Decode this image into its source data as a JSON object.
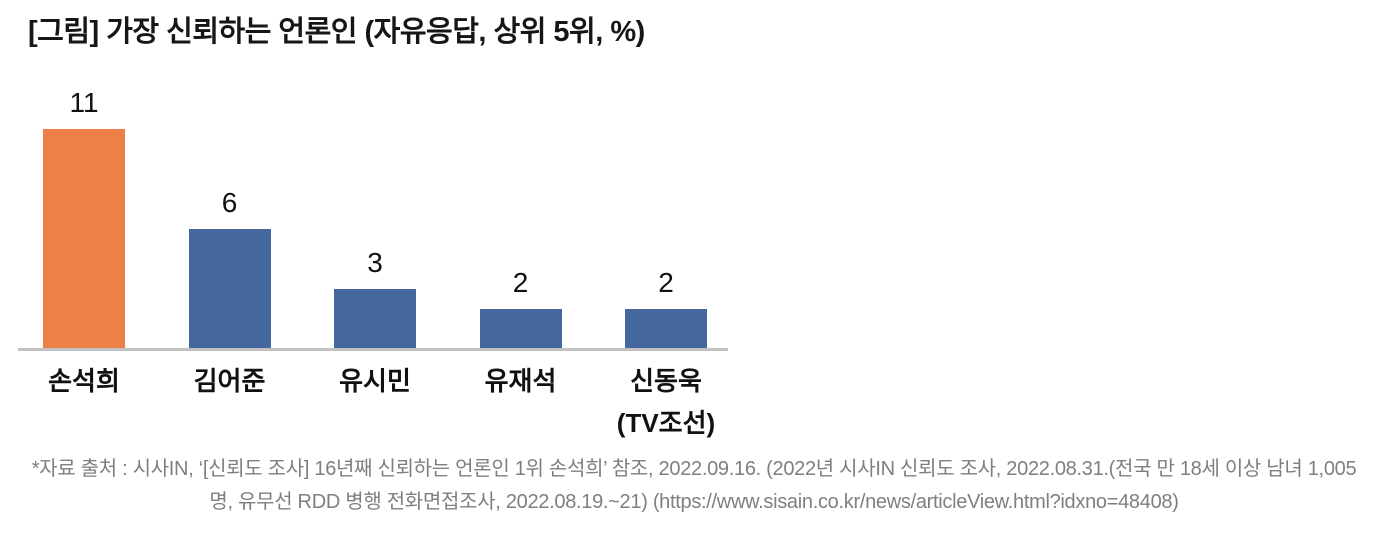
{
  "title": "[그림] 가장 신뢰하는 언론인 (자유응답, 상위 5위, %)",
  "chart_data": {
    "type": "bar",
    "title": "[그림] 가장 신뢰하는 언론인 (자유응답, 상위 5위, %)",
    "categories": [
      "손석희",
      "김어준",
      "유시민",
      "유재석",
      "신동욱\n(TV조선)"
    ],
    "values": [
      11,
      6,
      3,
      2,
      2
    ],
    "value_labels": [
      "11",
      "6",
      "3",
      "2",
      "2"
    ],
    "unit": "%",
    "colors": [
      "#ED8046",
      "#44679E",
      "#44679E",
      "#44679E",
      "#44679E"
    ],
    "highlight_color": "#ED8046",
    "default_color": "#44679E",
    "xlabel": "",
    "ylabel": "",
    "ylim": [
      0,
      12
    ],
    "grid": false,
    "legend": false,
    "data_labels": true,
    "axis_line_color": "#C1C1C1"
  },
  "footer": {
    "line1": "*자료 출처 : 시사IN, ‘[신뢰도 조사] 16년째 신뢰하는 언론인 1위 손석희’ 참조, 2022.09.16. (2022년 시사IN 신뢰도 조사, 2022.08.31.(전국 만 18세 이상 남녀 1,005",
    "line2": "명, 유무선 RDD 병행 전화면접조사, 2022.08.19.~21) (https://www.sisain.co.kr/news/articleView.html?idxno=48408)"
  },
  "colors": {
    "title_text": "#161616",
    "label_text": "#111111",
    "footer_text": "#7F7F7F",
    "background": "#FFFFFF"
  }
}
